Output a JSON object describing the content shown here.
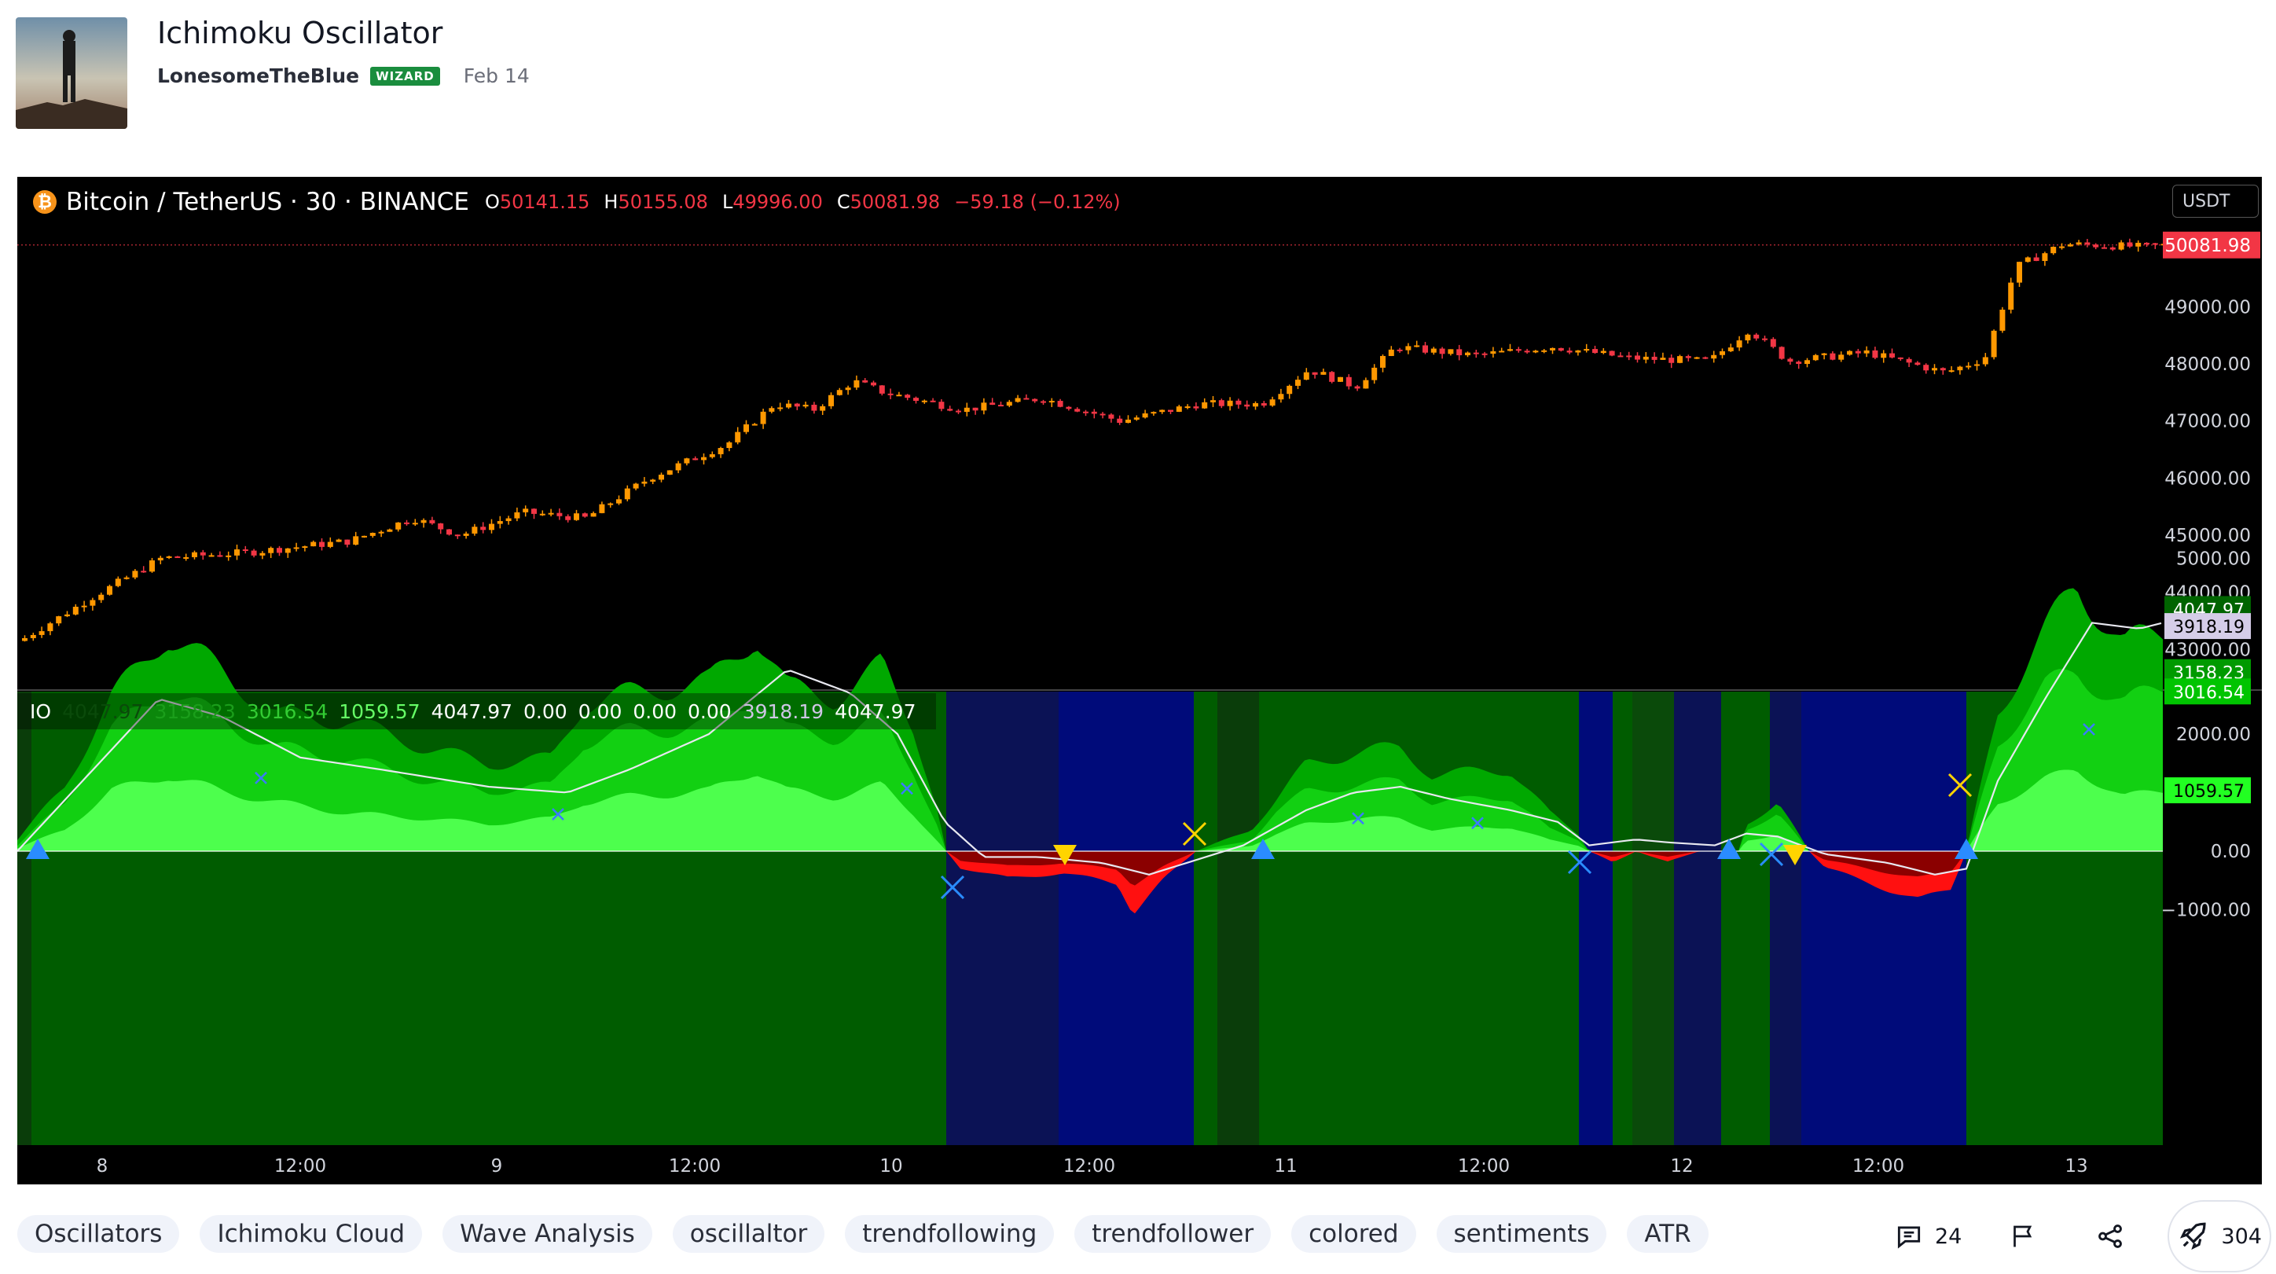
{
  "post": {
    "title": "Ichimoku Oscillator",
    "author": "LonesomeTheBlue",
    "badge": "WIZARD",
    "date": "Feb 14"
  },
  "chart": {
    "symbol": "Bitcoin / TetherUS · 30 · BINANCE",
    "ohlc": {
      "o_label": "O",
      "o": "50141.15",
      "h_label": "H",
      "h": "50155.08",
      "l_label": "L",
      "l": "49996.00",
      "c_label": "C",
      "c": "50081.98"
    },
    "change": "−59.18 (−0.12%)",
    "currency_button": "USDT",
    "last_price": "50081.98",
    "price_axis": [
      "49000.00",
      "48000.00",
      "47000.00",
      "46000.00",
      "45000.00",
      "44000.00",
      "43000.00"
    ],
    "time_axis": [
      "8",
      "12:00",
      "9",
      "12:00",
      "10",
      "12:00",
      "11",
      "12:00",
      "12",
      "12:00",
      "13"
    ],
    "colors": {
      "up": "#ff9800",
      "down": "#f23645",
      "background": "#000000"
    }
  },
  "indicator": {
    "name": "IO",
    "values": [
      "4047.97",
      "3158.23",
      "3016.54",
      "1059.57",
      "4047.97",
      "0.00",
      "0.00",
      "0.00",
      "0.00",
      "3918.19",
      "4047.97"
    ],
    "value_colors": [
      "#0a4a0a",
      "#1b9e1b",
      "#33cc33",
      "#66ff66",
      "#ffffff",
      "#ffffff",
      "#ffffff",
      "#ffffff",
      "#ffffff",
      "#cfc6e6",
      "#ffffff"
    ],
    "axis": [
      "5000.00",
      "2000.00",
      "0.00",
      "−1000.00"
    ],
    "axis_labels": [
      {
        "text": "4047.97",
        "bg": "#006400",
        "fg": "#ffffff"
      },
      {
        "text": "3918.19",
        "bg": "#d5cde8",
        "fg": "#000000"
      },
      {
        "text": "3158.23",
        "bg": "#009a00",
        "fg": "#ffffff"
      },
      {
        "text": "3016.54",
        "bg": "#00c400",
        "fg": "#ffffff"
      },
      {
        "text": "1059.57",
        "bg": "#22ff22",
        "fg": "#000000"
      }
    ]
  },
  "tags": [
    "Oscillators",
    "Ichimoku Cloud",
    "Wave Analysis",
    "oscillaltor",
    "trendfollowing",
    "trendfollower",
    "colored",
    "sentiments",
    "ATR"
  ],
  "actions": {
    "comments": "24",
    "boosts": "304"
  }
}
